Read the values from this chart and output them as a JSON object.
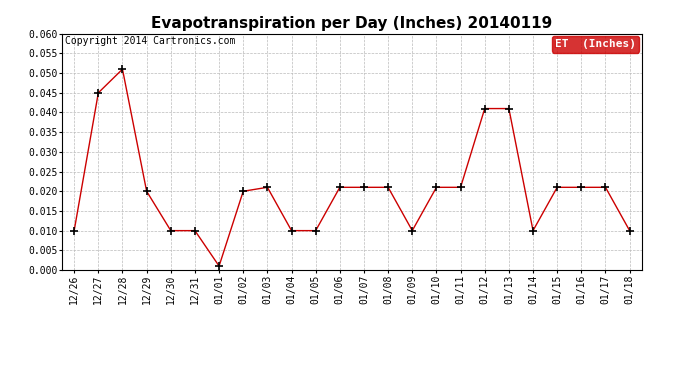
{
  "title": "Evapotranspiration per Day (Inches) 20140119",
  "copyright_text": "Copyright 2014 Cartronics.com",
  "legend_label": "ET  (Inches)",
  "x_labels": [
    "12/26",
    "12/27",
    "12/28",
    "12/29",
    "12/30",
    "12/31",
    "01/01",
    "01/02",
    "01/03",
    "01/04",
    "01/05",
    "01/06",
    "01/07",
    "01/08",
    "01/09",
    "01/10",
    "01/11",
    "01/12",
    "01/13",
    "01/14",
    "01/15",
    "01/16",
    "01/17",
    "01/18"
  ],
  "y_values": [
    0.01,
    0.045,
    0.051,
    0.02,
    0.01,
    0.01,
    0.001,
    0.02,
    0.021,
    0.01,
    0.01,
    0.021,
    0.021,
    0.021,
    0.01,
    0.021,
    0.021,
    0.041,
    0.041,
    0.01,
    0.021,
    0.021,
    0.021,
    0.01
  ],
  "line_color": "#cc0000",
  "marker": "+",
  "marker_size": 6,
  "marker_color": "#000000",
  "ylim": [
    0.0,
    0.06
  ],
  "yticks": [
    0.0,
    0.005,
    0.01,
    0.015,
    0.02,
    0.025,
    0.03,
    0.035,
    0.04,
    0.045,
    0.05,
    0.055,
    0.06
  ],
  "bg_color": "#ffffff",
  "grid_color": "#bbbbbb",
  "legend_bg": "#cc0000",
  "legend_text_color": "#ffffff",
  "title_fontsize": 11,
  "copyright_fontsize": 7,
  "tick_fontsize": 7,
  "legend_fontsize": 8
}
